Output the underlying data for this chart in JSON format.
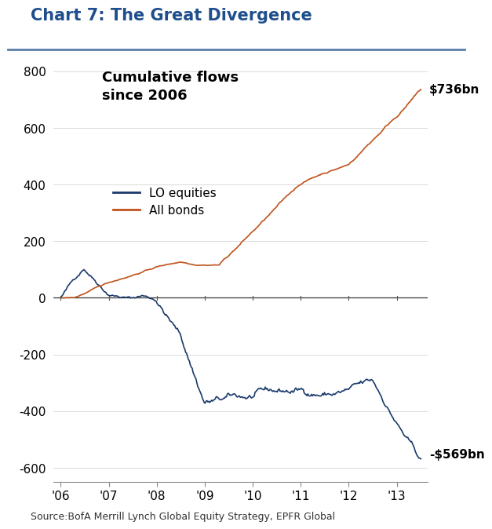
{
  "title": "Chart 7: The Great Divergence",
  "subtitle": "Cumulative flows\nsince 2006",
  "source": "Source:BofA Merrill Lynch Global Equity Strategy, EPFR Global",
  "equity_label": "LO equities",
  "bond_label": "All bonds",
  "equity_color": "#1a3a6b",
  "bond_color": "#c0521a",
  "equity_end_label": "-$569bn",
  "bond_end_label": "$736bn",
  "ylim": [
    -650,
    850
  ],
  "yticks": [
    -600,
    -400,
    -200,
    0,
    200,
    400,
    600,
    800
  ],
  "xtick_labels": [
    "'06",
    "'07",
    "'08",
    "'09",
    "'10",
    "'11",
    "'12",
    "'13"
  ],
  "title_color": "#1f4e8c",
  "title_line_color": "#5b7faa",
  "background_color": "#ffffff"
}
